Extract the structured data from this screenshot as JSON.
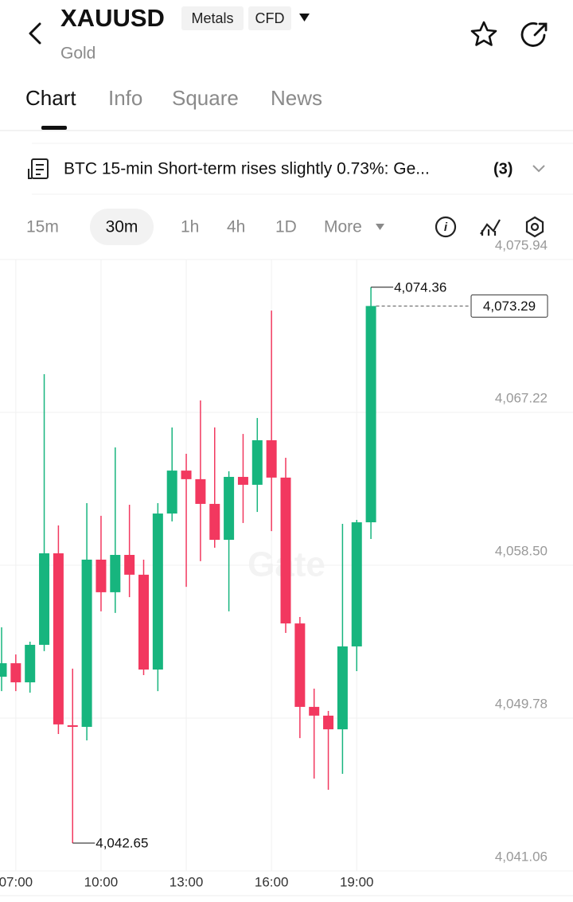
{
  "header": {
    "symbol": "XAUUSD",
    "badges": [
      "Metals",
      "CFD"
    ],
    "subtitle": "Gold"
  },
  "tabs": [
    "Chart",
    "Info",
    "Square",
    "News"
  ],
  "news": {
    "text": "BTC 15-min Short-term rises slightly 0.73%: Ge...",
    "count": "(3)"
  },
  "intervals": [
    "15m",
    "30m",
    "1h",
    "4h",
    "1D",
    "More"
  ],
  "chart_data": {
    "type": "candlestick",
    "watermark": "Gate",
    "categories": [
      null,
      "07:00",
      null,
      null,
      null,
      null,
      null,
      "10:00",
      null,
      null,
      null,
      null,
      null,
      "13:00",
      null,
      null,
      null,
      null,
      null,
      "16:00",
      null,
      null,
      null,
      null,
      null,
      "19:00",
      null
    ],
    "open": [
      4052.14,
      4052.91,
      4051.82,
      4053.96,
      4059.18,
      4049.37,
      4049.28,
      4058.82,
      4056.96,
      4059.09,
      4057.96,
      4052.55,
      4061.45,
      4063.9,
      4063.41,
      4062.0,
      4059.95,
      4063.54,
      4063.09,
      4065.63,
      4063.5,
      4055.18,
      4050.42,
      4049.92,
      4049.14,
      4053.87,
      4060.95
    ],
    "high": [
      4054.96,
      4053.41,
      4054.14,
      4069.4,
      4060.77,
      4052.6,
      4062.04,
      4061.32,
      4065.22,
      4061.95,
      4058.82,
      4062.04,
      4066.36,
      4064.86,
      4067.9,
      4066.36,
      4063.86,
      4065.99,
      4066.9,
      4073.03,
      4064.63,
      4055.55,
      4051.46,
      4050.19,
      4060.86,
      4061.09,
      4074.36
    ],
    "low": [
      4051.32,
      4051.32,
      4051.23,
      4053.6,
      4048.87,
      4042.65,
      4048.51,
      4055.87,
      4055.78,
      4056.68,
      4052.23,
      4051.32,
      4061.0,
      4057.27,
      4058.73,
      4059.5,
      4055.87,
      4060.91,
      4061.54,
      4060.45,
      4054.64,
      4048.64,
      4046.33,
      4045.69,
      4046.6,
      4052.46,
      4060.0
    ],
    "close": [
      4052.91,
      4051.82,
      4053.96,
      4059.18,
      4049.42,
      4049.28,
      4058.82,
      4056.96,
      4059.09,
      4057.96,
      4052.55,
      4061.45,
      4063.9,
      4063.41,
      4062.0,
      4059.95,
      4063.54,
      4063.09,
      4065.63,
      4063.5,
      4055.18,
      4050.42,
      4049.92,
      4049.14,
      4053.87,
      4060.95,
      4073.29
    ],
    "up_color": "#17b57e",
    "down_color": "#f2385f",
    "ylim": [
      4041.06,
      4075.94
    ],
    "yticks": [
      {
        "value": 4041.06,
        "label": "4,041.06"
      },
      {
        "value": 4049.78,
        "label": "4,049.78"
      },
      {
        "value": 4058.5,
        "label": "4,058.50"
      },
      {
        "value": 4067.22,
        "label": "4,067.22"
      },
      {
        "value": 4075.94,
        "label": "4,075.94"
      }
    ],
    "high_marker": {
      "value": 4074.36,
      "label": "4,074.36"
    },
    "low_marker": {
      "value": 4042.65,
      "label": "4,042.65"
    },
    "last_price": {
      "value": 4073.29,
      "label": "4,073.29"
    },
    "grid": true
  }
}
